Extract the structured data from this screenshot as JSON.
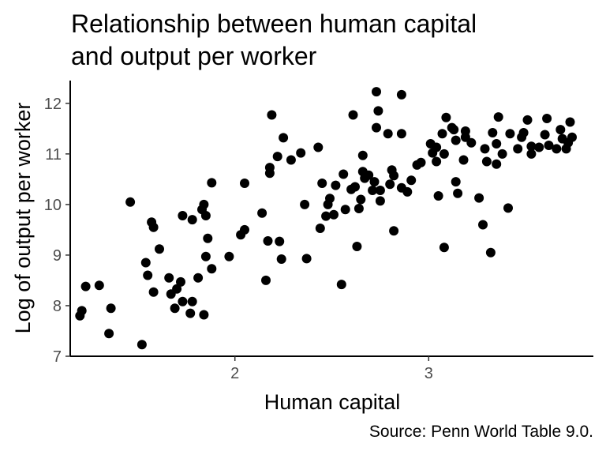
{
  "chart_data": {
    "type": "scatter",
    "title": [
      "Relationship between human capital",
      "and output per worker"
    ],
    "xlabel": "Human capital",
    "ylabel": "Log of output per worker",
    "caption": "Source: Penn World Table 9.0.",
    "xlim": [
      1.15,
      3.85
    ],
    "ylim": [
      7.0,
      12.45
    ],
    "x_ticks": [
      2,
      3
    ],
    "y_ticks": [
      7,
      8,
      9,
      10,
      11,
      12
    ],
    "grid": false,
    "point_color": "#000000",
    "points": [
      [
        1.2,
        7.8
      ],
      [
        1.21,
        7.9
      ],
      [
        1.23,
        8.38
      ],
      [
        1.3,
        8.4
      ],
      [
        1.35,
        7.45
      ],
      [
        1.36,
        7.95
      ],
      [
        1.46,
        10.05
      ],
      [
        1.52,
        7.23
      ],
      [
        1.54,
        8.85
      ],
      [
        1.55,
        8.6
      ],
      [
        1.57,
        9.65
      ],
      [
        1.58,
        9.55
      ],
      [
        1.58,
        8.27
      ],
      [
        1.61,
        9.12
      ],
      [
        1.66,
        8.55
      ],
      [
        1.67,
        8.23
      ],
      [
        1.69,
        7.95
      ],
      [
        1.7,
        8.33
      ],
      [
        1.72,
        8.47
      ],
      [
        1.73,
        8.08
      ],
      [
        1.73,
        9.78
      ],
      [
        1.77,
        7.85
      ],
      [
        1.78,
        8.08
      ],
      [
        1.78,
        9.7
      ],
      [
        1.81,
        8.55
      ],
      [
        1.83,
        9.9
      ],
      [
        1.84,
        10.0
      ],
      [
        1.84,
        7.82
      ],
      [
        1.85,
        9.78
      ],
      [
        1.85,
        8.97
      ],
      [
        1.86,
        9.33
      ],
      [
        1.88,
        10.43
      ],
      [
        1.88,
        8.73
      ],
      [
        1.97,
        8.97
      ],
      [
        2.03,
        9.4
      ],
      [
        2.05,
        9.5
      ],
      [
        2.05,
        10.42
      ],
      [
        2.14,
        9.83
      ],
      [
        2.16,
        8.5
      ],
      [
        2.17,
        9.28
      ],
      [
        2.18,
        10.73
      ],
      [
        2.18,
        10.62
      ],
      [
        2.19,
        11.77
      ],
      [
        2.22,
        10.95
      ],
      [
        2.23,
        9.27
      ],
      [
        2.24,
        8.92
      ],
      [
        2.25,
        11.32
      ],
      [
        2.29,
        10.88
      ],
      [
        2.34,
        11.02
      ],
      [
        2.36,
        10.0
      ],
      [
        2.37,
        8.93
      ],
      [
        2.43,
        11.13
      ],
      [
        2.44,
        9.53
      ],
      [
        2.45,
        10.42
      ],
      [
        2.47,
        9.77
      ],
      [
        2.48,
        10.0
      ],
      [
        2.49,
        10.12
      ],
      [
        2.51,
        9.8
      ],
      [
        2.52,
        10.38
      ],
      [
        2.55,
        8.42
      ],
      [
        2.56,
        10.6
      ],
      [
        2.57,
        9.9
      ],
      [
        2.6,
        10.3
      ],
      [
        2.61,
        11.77
      ],
      [
        2.62,
        10.35
      ],
      [
        2.63,
        9.17
      ],
      [
        2.64,
        9.92
      ],
      [
        2.65,
        10.1
      ],
      [
        2.66,
        10.97
      ],
      [
        2.66,
        10.65
      ],
      [
        2.67,
        10.52
      ],
      [
        2.69,
        10.58
      ],
      [
        2.71,
        10.28
      ],
      [
        2.72,
        10.45
      ],
      [
        2.73,
        11.52
      ],
      [
        2.73,
        12.23
      ],
      [
        2.74,
        11.85
      ],
      [
        2.75,
        10.07
      ],
      [
        2.75,
        10.28
      ],
      [
        2.79,
        11.4
      ],
      [
        2.8,
        10.4
      ],
      [
        2.81,
        10.68
      ],
      [
        2.82,
        10.57
      ],
      [
        2.82,
        9.48
      ],
      [
        2.86,
        12.17
      ],
      [
        2.86,
        11.4
      ],
      [
        2.86,
        10.33
      ],
      [
        2.89,
        10.25
      ],
      [
        2.91,
        10.48
      ],
      [
        2.94,
        10.78
      ],
      [
        2.96,
        10.83
      ],
      [
        3.01,
        11.2
      ],
      [
        3.02,
        11.02
      ],
      [
        3.04,
        11.13
      ],
      [
        3.04,
        10.85
      ],
      [
        3.05,
        10.17
      ],
      [
        3.07,
        11.4
      ],
      [
        3.08,
        9.15
      ],
      [
        3.08,
        11.0
      ],
      [
        3.09,
        11.72
      ],
      [
        3.12,
        11.52
      ],
      [
        3.13,
        11.48
      ],
      [
        3.14,
        11.27
      ],
      [
        3.14,
        10.45
      ],
      [
        3.15,
        10.22
      ],
      [
        3.18,
        10.88
      ],
      [
        3.19,
        11.45
      ],
      [
        3.19,
        11.33
      ],
      [
        3.22,
        11.22
      ],
      [
        3.26,
        10.13
      ],
      [
        3.28,
        9.6
      ],
      [
        3.29,
        11.1
      ],
      [
        3.3,
        10.85
      ],
      [
        3.32,
        9.05
      ],
      [
        3.33,
        11.42
      ],
      [
        3.35,
        11.2
      ],
      [
        3.35,
        10.8
      ],
      [
        3.36,
        11.73
      ],
      [
        3.38,
        11.0
      ],
      [
        3.41,
        9.93
      ],
      [
        3.42,
        11.4
      ],
      [
        3.46,
        11.1
      ],
      [
        3.48,
        11.33
      ],
      [
        3.49,
        11.42
      ],
      [
        3.51,
        11.67
      ],
      [
        3.53,
        11.15
      ],
      [
        3.53,
        11.0
      ],
      [
        3.57,
        11.13
      ],
      [
        3.6,
        11.38
      ],
      [
        3.61,
        11.7
      ],
      [
        3.62,
        11.17
      ],
      [
        3.66,
        11.1
      ],
      [
        3.68,
        11.48
      ],
      [
        3.69,
        11.3
      ],
      [
        3.71,
        11.1
      ],
      [
        3.72,
        11.22
      ],
      [
        3.73,
        11.63
      ],
      [
        3.74,
        11.33
      ]
    ]
  }
}
